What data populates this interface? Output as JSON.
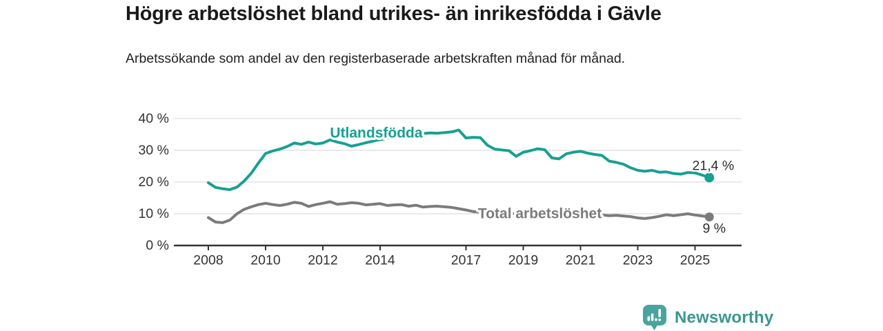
{
  "title": "Högre arbetslöshet bland utrikes- än inrikesfödda i Gävle",
  "subtitle": "Arbetssökande som andel av den registerbaserade arbetskraften månad för månad.",
  "branding": {
    "logo_text": "Newsworthy"
  },
  "colors": {
    "teal": "#17A093",
    "gray": "#7B7B7B",
    "logo_icon": "#4BA39D",
    "logo_text": "#3A9791",
    "title_text": "#1A1A1A",
    "axis_text": "#333333",
    "grid": "#DCDCDC",
    "axis_line": "#333333",
    "value_label": "#2E2E2E"
  },
  "chart_data": {
    "type": "line",
    "title": "Högre arbetslöshet bland utrikes- än inrikesfödda i Gävle",
    "subtitle": "Arbetssökande som andel av den registerbaserade arbetskraften månad för månad.",
    "unit": "%",
    "x_start": 2008,
    "x_step": 0.25,
    "xlim": [
      2008,
      2026.6
    ],
    "ylim": [
      0,
      40
    ],
    "grid": "horizontal",
    "legend_position": "inline-labels",
    "yticks": [
      {
        "value": 0,
        "label": "0 %"
      },
      {
        "value": 10,
        "label": "10 %"
      },
      {
        "value": 20,
        "label": "20 %"
      },
      {
        "value": 30,
        "label": "30 %"
      },
      {
        "value": 40,
        "label": "40 %"
      }
    ],
    "xticks": [
      {
        "value": 2008,
        "label": "2008"
      },
      {
        "value": 2010,
        "label": "2010"
      },
      {
        "value": 2012,
        "label": "2012"
      },
      {
        "value": 2014,
        "label": "2014"
      },
      {
        "value": 2017,
        "label": "2017"
      },
      {
        "value": 2019,
        "label": "2019"
      },
      {
        "value": 2021,
        "label": "2021"
      },
      {
        "value": 2023,
        "label": "2023"
      },
      {
        "value": 2025,
        "label": "2025"
      }
    ],
    "series": [
      {
        "name": "Utlandsfödda",
        "color": "#17A093",
        "last_value": 21.4,
        "name_label": {
          "year": 2012.25,
          "pct": 35.4,
          "anchor": "start"
        },
        "end_label": {
          "text": "21,4 %",
          "dx": 36,
          "dy": -11,
          "anchor": "end"
        },
        "values": [
          19.8,
          18.3,
          17.9,
          17.6,
          18.4,
          20.3,
          22.8,
          26.0,
          29.0,
          29.8,
          30.4,
          31.2,
          32.3,
          31.9,
          32.6,
          32.0,
          32.3,
          33.3,
          32.6,
          32.1,
          31.3,
          31.8,
          32.4,
          32.9,
          33.4,
          33.8,
          34.2,
          34.6,
          34.9,
          35.1,
          35.3,
          35.5,
          35.4,
          35.6,
          35.8,
          36.4,
          33.9,
          34.1,
          34.0,
          31.6,
          30.4,
          30.1,
          29.9,
          28.1,
          29.4,
          29.9,
          30.5,
          30.2,
          27.6,
          27.3,
          28.9,
          29.4,
          29.7,
          29.1,
          28.7,
          28.4,
          26.6,
          26.2,
          25.6,
          24.5,
          23.7,
          23.4,
          23.7,
          23.1,
          23.2,
          22.7,
          22.5,
          23.0,
          22.9,
          22.2,
          21.4
        ]
      },
      {
        "name": "Total arbetslöshet",
        "color": "#7B7B7B",
        "last_value": 9,
        "name_label": {
          "year": 2017.42,
          "pct": 10.0,
          "anchor": "start"
        },
        "end_label": {
          "text": "9 %",
          "dx": 7,
          "dy": 23,
          "anchor": "middle"
        },
        "values": [
          8.8,
          7.4,
          7.2,
          8.0,
          10.0,
          11.4,
          12.2,
          12.9,
          13.3,
          12.9,
          12.6,
          13.0,
          13.6,
          13.3,
          12.3,
          12.9,
          13.3,
          13.8,
          13.0,
          13.2,
          13.5,
          13.3,
          12.8,
          13.0,
          13.2,
          12.6,
          12.8,
          12.9,
          12.4,
          12.7,
          12.1,
          12.3,
          12.4,
          12.2,
          12.0,
          11.6,
          11.2,
          10.7,
          10.5,
          10.4,
          10.3,
          10.2,
          10.1,
          10.0,
          9.9,
          9.9,
          9.8,
          9.7,
          9.6,
          9.9,
          10.2,
          10.1,
          10.0,
          9.9,
          9.7,
          9.6,
          9.4,
          9.5,
          9.3,
          9.1,
          8.7,
          8.5,
          8.8,
          9.2,
          9.7,
          9.4,
          9.7,
          10.0,
          9.6,
          9.3,
          9.0
        ]
      }
    ]
  }
}
